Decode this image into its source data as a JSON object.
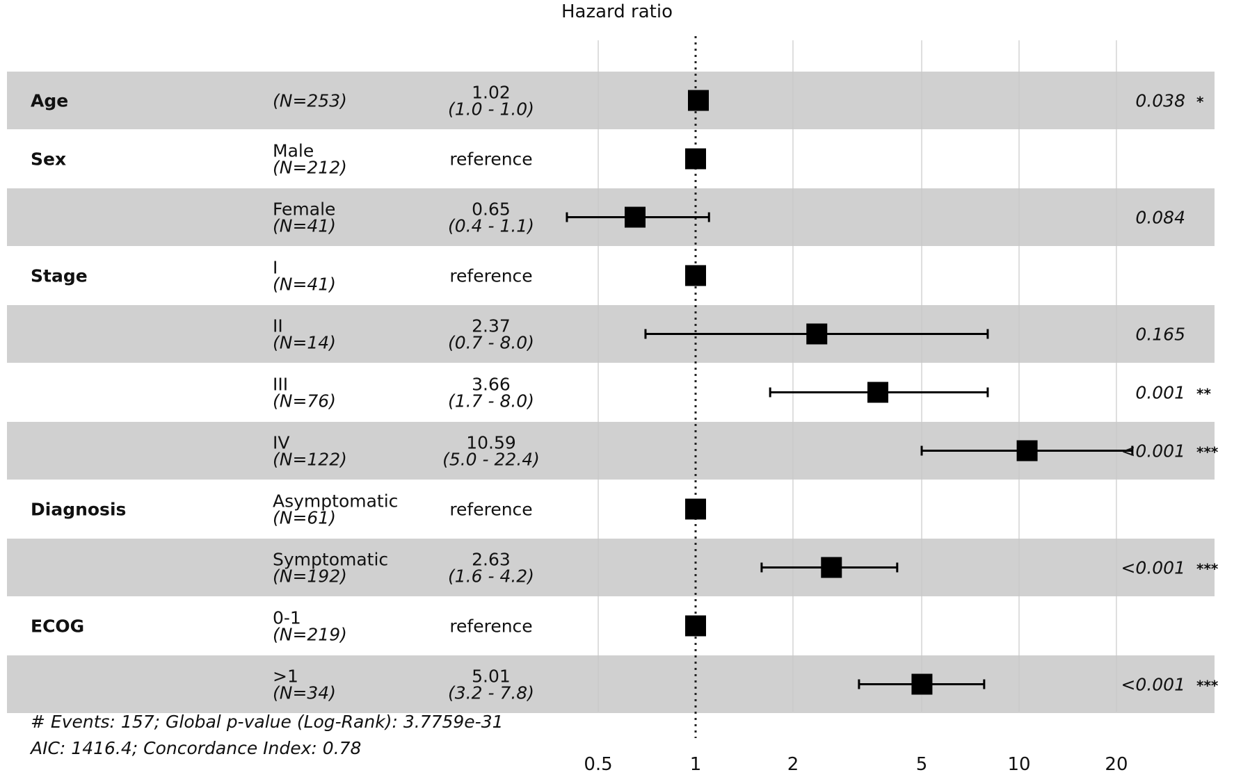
{
  "chart_data": {
    "type": "forest",
    "title": "Hazard ratio",
    "x_scale": "log",
    "xlim": [
      0.4,
      36
    ],
    "x_ticks": [
      "0.5",
      "1",
      "2",
      "5",
      "10",
      "20"
    ],
    "x_tick_values": [
      0.5,
      1,
      2,
      5,
      10,
      20
    ],
    "reference_line": 1,
    "grid": true,
    "rows": [
      {
        "variable": "Age",
        "level": "",
        "n": "(N=253)",
        "estimate": "1.02",
        "ci_text": "(1.0 -  1.0)",
        "hr": 1.02,
        "lo": 1.0,
        "hi": 1.0,
        "p": "0.038 *",
        "shaded": true
      },
      {
        "variable": "Sex",
        "level": "Male",
        "n": "(N=212)",
        "estimate": "reference",
        "ci_text": "",
        "hr": 1.0,
        "lo": null,
        "hi": null,
        "p": "",
        "shaded": false
      },
      {
        "variable": "",
        "level": "Female",
        "n": "(N=41)",
        "estimate": "0.65",
        "ci_text": "(0.4 -  1.1)",
        "hr": 0.65,
        "lo": 0.4,
        "hi": 1.1,
        "p": "0.084",
        "shaded": true
      },
      {
        "variable": "Stage",
        "level": "I",
        "n": "(N=41)",
        "estimate": "reference",
        "ci_text": "",
        "hr": 1.0,
        "lo": null,
        "hi": null,
        "p": "",
        "shaded": false
      },
      {
        "variable": "",
        "level": "II",
        "n": "(N=14)",
        "estimate": "2.37",
        "ci_text": "(0.7 -  8.0)",
        "hr": 2.37,
        "lo": 0.7,
        "hi": 8.0,
        "p": "0.165",
        "shaded": true
      },
      {
        "variable": "",
        "level": "III",
        "n": "(N=76)",
        "estimate": "3.66",
        "ci_text": "(1.7 -  8.0)",
        "hr": 3.66,
        "lo": 1.7,
        "hi": 8.0,
        "p": "0.001 **",
        "shaded": false
      },
      {
        "variable": "",
        "level": "IV",
        "n": "(N=122)",
        "estimate": "10.59",
        "ci_text": "(5.0 - 22.4)",
        "hr": 10.59,
        "lo": 5.0,
        "hi": 22.4,
        "p": "<0.001 ***",
        "shaded": true
      },
      {
        "variable": "Diagnosis",
        "level": "Asymptomatic",
        "n": "(N=61)",
        "estimate": "reference",
        "ci_text": "",
        "hr": 1.0,
        "lo": null,
        "hi": null,
        "p": "",
        "shaded": false
      },
      {
        "variable": "",
        "level": "Symptomatic",
        "n": "(N=192)",
        "estimate": "2.63",
        "ci_text": "(1.6 -  4.2)",
        "hr": 2.63,
        "lo": 1.6,
        "hi": 4.2,
        "p": "<0.001 ***",
        "shaded": true
      },
      {
        "variable": "ECOG",
        "level": "0-1",
        "n": "(N=219)",
        "estimate": "reference",
        "ci_text": "",
        "hr": 1.0,
        "lo": null,
        "hi": null,
        "p": "",
        "shaded": false
      },
      {
        "variable": "",
        "level": ">1",
        "n": "(N=34)",
        "estimate": "5.01",
        "ci_text": "(3.2 -  7.8)",
        "hr": 5.01,
        "lo": 3.2,
        "hi": 7.8,
        "p": "<0.001 ***",
        "shaded": true
      }
    ]
  },
  "footer": {
    "line1": "# Events: 157; Global p-value (Log-Rank): 3.7759e-31",
    "line2": "AIC: 1416.4; Concordance Index: 0.78"
  },
  "colors": {
    "row_shade": "#d0d0d0",
    "grid": "#c8c8c8",
    "marker": "#000000"
  }
}
